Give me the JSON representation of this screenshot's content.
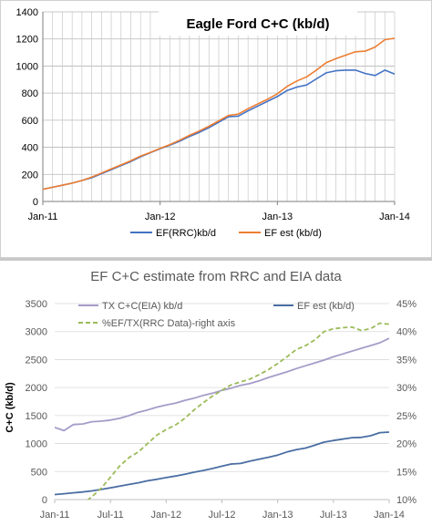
{
  "chart_data": [
    {
      "type": "line",
      "title": "Eagle Ford C+C (kb/d)",
      "xlabel": "",
      "ylabel": "",
      "x_ticks": [
        "Jan-11",
        "Jan-12",
        "Jan-13",
        "Jan-14"
      ],
      "x_range": [
        0,
        36
      ],
      "ylim": [
        0,
        1400
      ],
      "y_ticks": [
        0,
        200,
        400,
        600,
        800,
        1000,
        1200,
        1400
      ],
      "grid": true,
      "legend_placement": "bottom",
      "series": [
        {
          "name": "EF(RRC)kb/d",
          "color": "#4472c4",
          "x": [
            0,
            1,
            2,
            3,
            4,
            5,
            6,
            7,
            8,
            9,
            10,
            11,
            12,
            13,
            14,
            15,
            16,
            17,
            18,
            19,
            20,
            21,
            22,
            23,
            24,
            25,
            26,
            27,
            28,
            29,
            30,
            31,
            32,
            33,
            34,
            35,
            36
          ],
          "values": [
            90,
            105,
            120,
            135,
            155,
            175,
            205,
            235,
            265,
            295,
            330,
            360,
            390,
            415,
            445,
            480,
            510,
            545,
            585,
            625,
            630,
            670,
            705,
            740,
            775,
            820,
            845,
            860,
            905,
            950,
            965,
            970,
            970,
            945,
            930,
            970,
            940
          ]
        },
        {
          "name": "EF est (kb/d)",
          "color": "#ed7d31",
          "x": [
            0,
            1,
            2,
            3,
            4,
            5,
            6,
            7,
            8,
            9,
            10,
            11,
            12,
            13,
            14,
            15,
            16,
            17,
            18,
            19,
            20,
            21,
            22,
            23,
            24,
            25,
            26,
            27,
            28,
            29,
            30,
            31,
            32,
            33,
            34,
            35,
            36
          ],
          "values": [
            90,
            105,
            120,
            135,
            155,
            180,
            210,
            240,
            270,
            300,
            335,
            362,
            392,
            420,
            452,
            488,
            520,
            555,
            595,
            635,
            645,
            685,
            720,
            755,
            795,
            850,
            890,
            920,
            970,
            1025,
            1055,
            1080,
            1105,
            1110,
            1140,
            1195,
            1205
          ]
        }
      ]
    },
    {
      "type": "line",
      "title": "EF C+C estimate from RRC and EIA data",
      "xlabel": "",
      "ylabel": "C+C (kb/d)",
      "x_ticks": [
        "Jan-11",
        "Jul-11",
        "Jan-12",
        "Jul-12",
        "Jan-13",
        "Jul-13",
        "Jan-14"
      ],
      "x_range": [
        0,
        36
      ],
      "ylim": [
        0,
        3500
      ],
      "y_ticks": [
        0,
        500,
        1000,
        1500,
        2000,
        2500,
        3000,
        3500
      ],
      "y2lim": [
        10,
        45
      ],
      "y2_ticks": [
        "10%",
        "15%",
        "20%",
        "25%",
        "30%",
        "35%",
        "40%",
        "45%"
      ],
      "grid": true,
      "legend_placement": "top-left",
      "series": [
        {
          "name": "TX C+C(EIA) kb/d",
          "color": "#a59cc8",
          "axis": "left",
          "x": [
            0,
            1,
            2,
            3,
            4,
            5,
            6,
            7,
            8,
            9,
            10,
            11,
            12,
            13,
            14,
            15,
            16,
            17,
            18,
            19,
            20,
            21,
            22,
            23,
            24,
            25,
            26,
            27,
            28,
            29,
            30,
            31,
            32,
            33,
            34,
            35,
            36
          ],
          "values": [
            1290,
            1230,
            1340,
            1350,
            1390,
            1400,
            1420,
            1450,
            1500,
            1560,
            1600,
            1650,
            1690,
            1720,
            1770,
            1810,
            1860,
            1900,
            1950,
            1990,
            2040,
            2070,
            2120,
            2180,
            2230,
            2280,
            2340,
            2390,
            2440,
            2490,
            2550,
            2600,
            2650,
            2700,
            2750,
            2800,
            2880
          ]
        },
        {
          "name": "EF est (kb/d)",
          "color": "#4a6ea3",
          "axis": "left",
          "x": [
            0,
            1,
            2,
            3,
            4,
            5,
            6,
            7,
            8,
            9,
            10,
            11,
            12,
            13,
            14,
            15,
            16,
            17,
            18,
            19,
            20,
            21,
            22,
            23,
            24,
            25,
            26,
            27,
            28,
            29,
            30,
            31,
            32,
            33,
            34,
            35,
            36
          ],
          "values": [
            90,
            105,
            120,
            135,
            155,
            180,
            210,
            240,
            270,
            300,
            335,
            362,
            392,
            420,
            452,
            488,
            520,
            555,
            595,
            635,
            645,
            685,
            720,
            755,
            795,
            850,
            890,
            920,
            970,
            1025,
            1055,
            1080,
            1105,
            1110,
            1140,
            1195,
            1205
          ]
        },
        {
          "name": "%EF/TX(RRC Data)-right axis",
          "color": "#9bbb59",
          "axis": "right",
          "dashed": true,
          "x": [
            0,
            1,
            2,
            3,
            4,
            5,
            6,
            7,
            8,
            9,
            10,
            11,
            12,
            13,
            14,
            15,
            16,
            17,
            18,
            19,
            20,
            21,
            22,
            23,
            24,
            25,
            26,
            27,
            28,
            29,
            30,
            31,
            32,
            33,
            34,
            35,
            36
          ],
          "values": [
            7.0,
            7.6,
            8.3,
            9.2,
            10.5,
            12.0,
            14.0,
            16.0,
            17.5,
            18.5,
            20.0,
            21.5,
            22.5,
            23.3,
            24.5,
            26.0,
            27.3,
            28.5,
            29.5,
            30.5,
            31.0,
            31.5,
            32.3,
            33.2,
            34.3,
            35.5,
            36.8,
            37.5,
            38.5,
            40.0,
            40.5,
            40.7,
            40.8,
            40.2,
            40.5,
            41.5,
            41.3
          ]
        }
      ]
    }
  ]
}
